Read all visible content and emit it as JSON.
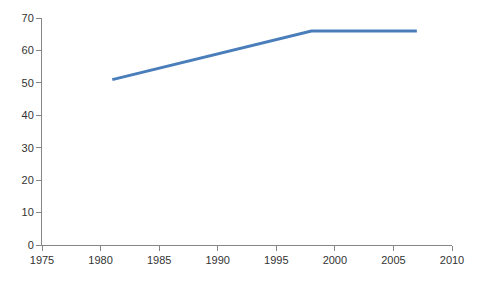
{
  "chart_data": {
    "type": "line",
    "x": [
      1981,
      1998,
      2007
    ],
    "values": [
      51,
      66,
      66
    ],
    "color": "#4a7ebb",
    "xlim": [
      1975,
      2010
    ],
    "xticks": [
      1975,
      1980,
      1985,
      1990,
      1995,
      2000,
      2005,
      2010
    ],
    "ylim": [
      0,
      70
    ],
    "yticks": [
      0,
      10,
      20,
      30,
      40,
      50,
      60,
      70
    ],
    "grid": false
  }
}
